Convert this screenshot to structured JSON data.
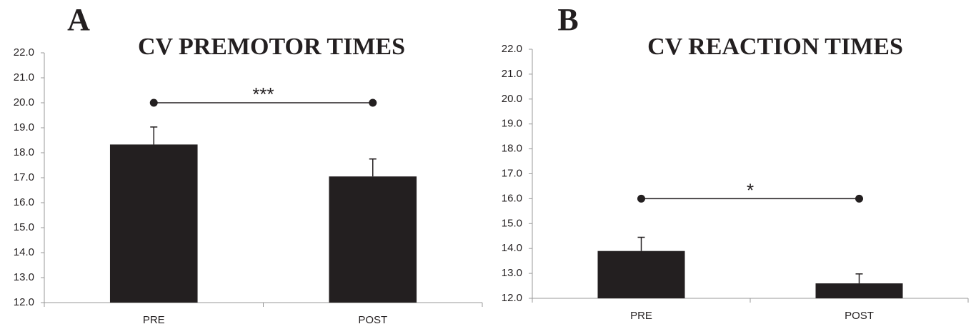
{
  "chart_data": [
    {
      "type": "bar",
      "panel": "A",
      "title": "CV PREMOTOR TIMES",
      "categories": [
        "PRE",
        "POST"
      ],
      "values": [
        18.33,
        17.05
      ],
      "errors": [
        0.7,
        0.7
      ],
      "color": "#231f20",
      "ylim": [
        12,
        22
      ],
      "yticks": [
        {
          "value": 12,
          "label": "12.0"
        },
        {
          "value": 13,
          "label": "13.0"
        },
        {
          "value": 14,
          "label": "14.0"
        },
        {
          "value": 15,
          "label": "15.0"
        },
        {
          "value": 16,
          "label": "16.0"
        },
        {
          "value": 17,
          "label": "17.0"
        },
        {
          "value": 18,
          "label": "18.0"
        },
        {
          "value": 19,
          "label": "19.0"
        },
        {
          "value": 20,
          "label": "20.0"
        },
        {
          "value": 21,
          "label": "21.0"
        },
        {
          "value": 22,
          "label": "22.0"
        }
      ],
      "significance": {
        "label": "***",
        "y": 20
      }
    },
    {
      "type": "bar",
      "panel": "B",
      "title": "CV REACTION TIMES",
      "categories": [
        "PRE",
        "POST"
      ],
      "values": [
        13.9,
        12.6
      ],
      "errors": [
        0.55,
        0.38
      ],
      "color": "#231f20",
      "ylim": [
        12,
        22
      ],
      "yticks": [
        {
          "value": 12,
          "label": "12.0"
        },
        {
          "value": 13,
          "label": "13.0"
        },
        {
          "value": 14,
          "label": "14.0"
        },
        {
          "value": 15,
          "label": "15.0"
        },
        {
          "value": 16,
          "label": "16.0"
        },
        {
          "value": 17,
          "label": "17.0"
        },
        {
          "value": 18,
          "label": "18.0"
        },
        {
          "value": 19,
          "label": "19.0"
        },
        {
          "value": 20,
          "label": "20.0"
        },
        {
          "value": 21,
          "label": "21.0"
        },
        {
          "value": 22,
          "label": "22.0"
        }
      ],
      "significance": {
        "label": "*",
        "y": 16
      }
    }
  ]
}
